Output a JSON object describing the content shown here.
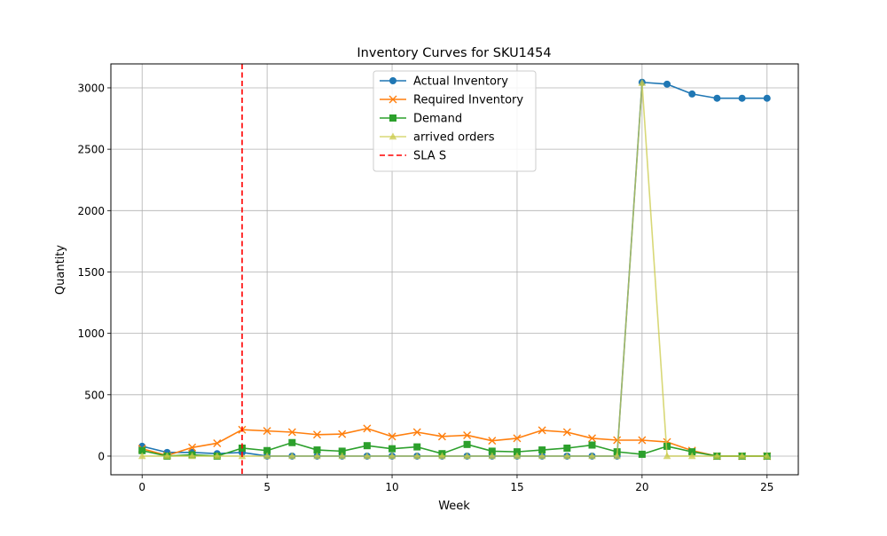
{
  "chart_data": {
    "type": "line",
    "title": "Inventory Curves for SKU1454",
    "xlabel": "Week",
    "ylabel": "Quantity",
    "xlim": [
      -1.25,
      26.25
    ],
    "ylim": [
      -152,
      3195
    ],
    "xticks": [
      0,
      5,
      10,
      15,
      20,
      25
    ],
    "yticks": [
      0,
      500,
      1000,
      1500,
      2000,
      2500,
      3000
    ],
    "grid": true,
    "legend_position": "upper center",
    "x": [
      0,
      1,
      2,
      3,
      4,
      5,
      6,
      7,
      8,
      9,
      10,
      11,
      12,
      13,
      14,
      15,
      16,
      17,
      18,
      19,
      20,
      21,
      22,
      23,
      24,
      25
    ],
    "series": [
      {
        "name": "Actual Inventory",
        "color": "#1f77b4",
        "marker": "circle",
        "alpha": 1,
        "values": [
          80,
          30,
          30,
          20,
          30,
          0,
          0,
          0,
          0,
          0,
          0,
          0,
          0,
          0,
          0,
          0,
          0,
          0,
          0,
          0,
          3045,
          3030,
          2950,
          2915,
          2915,
          2915
        ]
      },
      {
        "name": "Required Inventory",
        "color": "#ff7f0e",
        "marker": "x",
        "alpha": 1,
        "values": [
          60,
          5,
          70,
          105,
          215,
          205,
          195,
          175,
          180,
          225,
          160,
          195,
          160,
          170,
          125,
          145,
          210,
          195,
          145,
          130,
          130,
          115,
          45,
          0,
          0,
          0
        ]
      },
      {
        "name": "Demand",
        "color": "#2ca02c",
        "marker": "square",
        "alpha": 1,
        "values": [
          45,
          0,
          10,
          0,
          65,
          45,
          110,
          50,
          40,
          85,
          60,
          75,
          20,
          95,
          40,
          35,
          50,
          65,
          90,
          35,
          15,
          80,
          35,
          0,
          0,
          0
        ]
      },
      {
        "name": "arrived orders",
        "color": "#cbcb4a",
        "marker": "triangle",
        "alpha": 0.75,
        "values": [
          0,
          0,
          0,
          0,
          0,
          0,
          0,
          0,
          0,
          0,
          0,
          0,
          0,
          0,
          0,
          0,
          0,
          0,
          0,
          0,
          3040,
          0,
          0,
          0,
          0,
          0
        ]
      }
    ],
    "vlines": [
      {
        "name": "SLA S",
        "x": 4,
        "color": "#ff0000",
        "style": "dashed"
      }
    ]
  }
}
